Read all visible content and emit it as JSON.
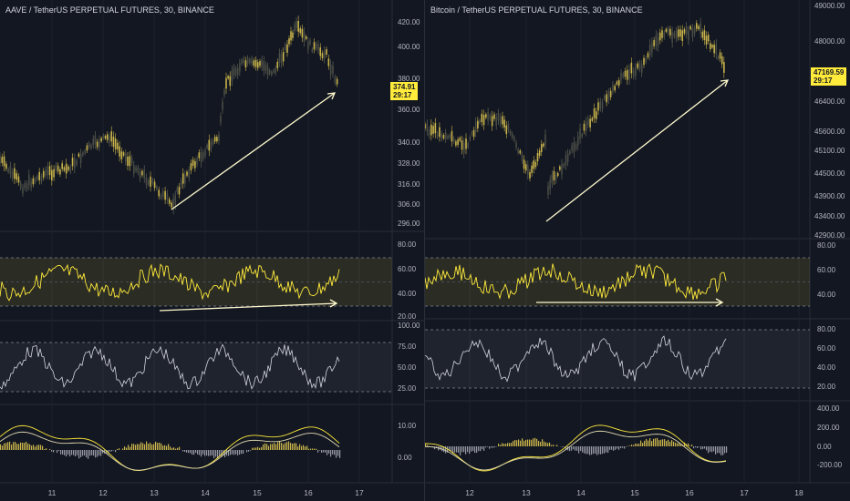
{
  "colors": {
    "bg": "#131722",
    "up": "#c9b44a",
    "line": "#ffeb3b",
    "osc": "#d1d4dc",
    "arrow": "#fffacd"
  },
  "left": {
    "title": "AAVE / TetherUS PERPETUAL FUTURES, 30, BINANCE",
    "price_axis": [
      "420.00",
      "400.00",
      "380.00",
      "360.00",
      "340.00",
      "328.00",
      "316.00",
      "306.00",
      "296.00"
    ],
    "last_price": "374.91",
    "countdown": "29:17",
    "rsi_axis": [
      "80.00",
      "60.00",
      "40.00",
      "20.00"
    ],
    "osc2_axis": [
      "100.00",
      "75.00",
      "50.00",
      "25.00"
    ],
    "macd_axis": [
      "10.00",
      "0.00"
    ],
    "x_axis": [
      "11",
      "12",
      "13",
      "14",
      "15",
      "16",
      "17"
    ]
  },
  "right": {
    "title": "Bitcoin / TetherUS PERPETUAL FUTURES, 30, BINANCE",
    "price_axis": [
      "49000.00",
      "48000.00",
      "46400.00",
      "45600.00",
      "45100.00",
      "44500.00",
      "43900.00",
      "43400.00",
      "42900.00"
    ],
    "last_price": "47169.59",
    "countdown": "29:17",
    "rsi_axis": [
      "80.00",
      "60.00",
      "40.00"
    ],
    "osc2_axis": [
      "80.00",
      "60.00",
      "40.00",
      "20.00"
    ],
    "macd_axis": [
      "400.00",
      "200.00",
      "0.00",
      "-200.00"
    ],
    "x_axis": [
      "12",
      "13",
      "14",
      "15",
      "16",
      "17",
      "18"
    ]
  }
}
